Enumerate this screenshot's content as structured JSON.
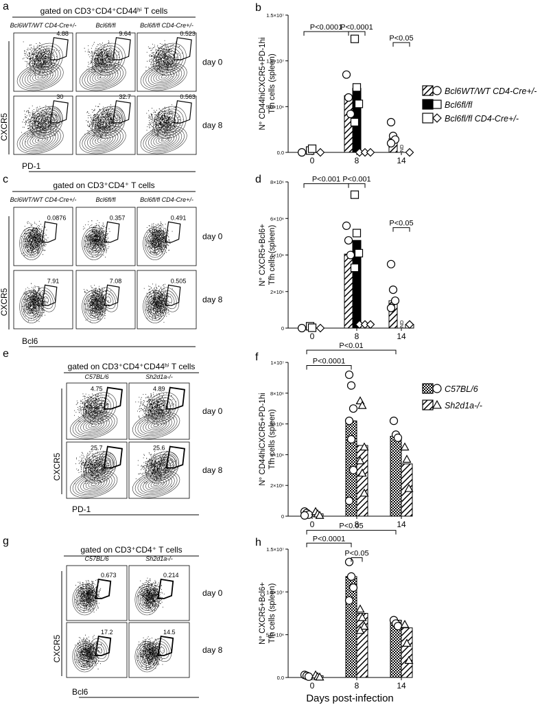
{
  "panel_letters": [
    "a",
    "b",
    "c",
    "d",
    "e",
    "f",
    "g",
    "h"
  ],
  "flow": [
    {
      "id": "a",
      "gate": "gated on CD3⁺CD4⁺CD44ʰⁱ T cells",
      "cols": [
        "Bcl6WT/WT CD4-Cre+/-",
        "Bcl6fl/fl",
        "Bcl6fl/fl CD4-Cre+/-"
      ],
      "rows": [
        "day 0",
        "day 8"
      ],
      "values": [
        [
          "4.88",
          "9.64",
          "0.523"
        ],
        [
          "30",
          "32.7",
          "0.563"
        ]
      ],
      "ylabel": "CXCR5",
      "xlabel": "PD-1"
    },
    {
      "id": "c",
      "gate": "gated on CD3⁺CD4⁺ T cells",
      "cols": [
        "Bcl6WT/WT CD4-Cre+/-",
        "Bcl6fl/fl",
        "Bcl6fl/fl CD4-Cre+/-"
      ],
      "rows": [
        "day 0",
        "day 8"
      ],
      "values": [
        [
          "0.0876",
          "0.357",
          "0.491"
        ],
        [
          "7.91",
          "7.08",
          "0.505"
        ]
      ],
      "ylabel": "CXCR5",
      "xlabel": "Bcl6"
    },
    {
      "id": "e",
      "gate": "gated on CD3⁺CD4⁺CD44ʰⁱ T cells",
      "cols": [
        "C57BL/6",
        "Sh2d1a-/-"
      ],
      "rows": [
        "day 0",
        "day 8"
      ],
      "values": [
        [
          "4.75",
          "4.89"
        ],
        [
          "25.7",
          "25.6"
        ]
      ],
      "ylabel": "CXCR5",
      "xlabel": "PD-1"
    },
    {
      "id": "g",
      "gate": "gated on CD3⁺CD4⁺ T cells",
      "cols": [
        "C57BL/6",
        "Sh2d1a-/-"
      ],
      "rows": [
        "day 0",
        "day 8"
      ],
      "values": [
        [
          "0.673",
          "0.214"
        ],
        [
          "17.2",
          "14.5"
        ]
      ],
      "ylabel": "CXCR5",
      "xlabel": "Bcl6"
    }
  ],
  "legend_top": [
    "Bcl6WT/WT CD4-Cre+/-",
    "Bcl6fl/fl",
    "Bcl6fl/fl CD4-Cre+/-"
  ],
  "legend_bottom": [
    "C57BL/6",
    "Sh2d1a-/-"
  ],
  "x_axis_title": "Days post-infection",
  "chart_data": [
    {
      "id": "b",
      "type": "bar",
      "ylabel": "N° CD44hiCXCR5+PD-1hi Tfh cells (spleen)",
      "categories": [
        "0",
        "8",
        "14"
      ],
      "yticks": [
        "0.0",
        "5.0×10⁶",
        "1.0×10⁷",
        "1.5×10⁷"
      ],
      "ylim": [
        0,
        15000000
      ],
      "series": [
        {
          "name": "Bcl6WT/WT CD4-Cre+/-",
          "values": [
            0,
            6200000,
            1500000
          ]
        },
        {
          "name": "Bcl6fl/fl",
          "values": [
            0,
            7000000,
            0
          ]
        },
        {
          "name": "Bcl6fl/fl CD4-Cre+/-",
          "values": [
            0,
            0,
            0
          ]
        }
      ],
      "points": [
        [
          [
            0
          ],
          [
            8500000,
            6000000,
            4200000
          ],
          [
            3300000,
            1800000,
            1400000,
            1000000
          ]
        ],
        [
          [
            200000,
            400000
          ],
          [
            12400000,
            7100000,
            5300000,
            3300000
          ],
          []
        ],
        [
          [
            0
          ],
          [
            0,
            0,
            0
          ],
          [
            0
          ]
        ]
      ],
      "nd": [
        "",
        "",
        "ND"
      ],
      "pvalues": [
        {
          "text": "P<0.0001",
          "x1": [
            0,
            0
          ],
          "x2": [
            1,
            0
          ],
          "y": 13200000
        },
        {
          "text": "P<0.0001",
          "x1": [
            1,
            0
          ],
          "x2": [
            1,
            2
          ],
          "y": 13200000
        },
        {
          "text": "P<0.05",
          "x1": [
            2,
            0
          ],
          "x2": [
            2,
            2
          ],
          "y": 12000000
        }
      ]
    },
    {
      "id": "d",
      "type": "bar",
      "ylabel": "N° CXCR5+Bcl6+ Tfh cells (spleen)",
      "categories": [
        "0",
        "8",
        "14"
      ],
      "yticks": [
        "0",
        "2×10⁶",
        "4×10⁶",
        "6×10⁶",
        "8×10⁶"
      ],
      "ylim": [
        0,
        8000000
      ],
      "series": [
        {
          "name": "Bcl6WT/WT CD4-Cre+/-",
          "values": [
            0,
            4050000,
            1500000
          ]
        },
        {
          "name": "Bcl6fl/fl",
          "values": [
            0,
            4800000,
            0
          ]
        },
        {
          "name": "Bcl6fl/fl CD4-Cre+/-",
          "values": [
            0,
            200000,
            200000
          ]
        }
      ],
      "points": [
        [
          [
            0
          ],
          [
            5600000,
            4800000,
            4000000
          ],
          [
            3500000,
            2100000,
            1500000,
            1100000
          ]
        ],
        [
          [
            100000,
            20000
          ],
          [
            7300000,
            5200000,
            4100000,
            3300000
          ],
          []
        ],
        [
          [
            0
          ],
          [
            200000,
            200000,
            200000
          ],
          [
            200000
          ]
        ]
      ],
      "nd": [
        "",
        "",
        "ND"
      ],
      "pvalues": [
        {
          "text": "P<0.001",
          "x1": [
            0,
            0
          ],
          "x2": [
            1,
            0
          ],
          "y": 7900000
        },
        {
          "text": "P<0.001",
          "x1": [
            1,
            0
          ],
          "x2": [
            1,
            2
          ],
          "y": 7900000
        },
        {
          "text": "P<0.05",
          "x1": [
            2,
            0
          ],
          "x2": [
            2,
            2
          ],
          "y": 5500000
        }
      ]
    },
    {
      "id": "f",
      "type": "bar",
      "ylabel": "N° CD44hiCXCR5+PD-1hi Tfh cells (spleen)",
      "categories": [
        "0",
        "8",
        "14"
      ],
      "yticks": [
        "0",
        "2×10⁶",
        "4×10⁶",
        "6×10⁶",
        "8×10⁶",
        "1×10⁷"
      ],
      "ylim": [
        0,
        10000000
      ],
      "series": [
        {
          "name": "C57BL/6",
          "values": [
            200000,
            6200000,
            5200000
          ]
        },
        {
          "name": "Sh2d1a-/-",
          "values": [
            150000,
            4600000,
            3400000
          ]
        }
      ],
      "points": [
        [
          [
            300000,
            200000,
            100000,
            50000
          ],
          [
            9200000,
            8500000,
            7000000,
            6200000,
            5000000,
            3000000,
            1000000
          ],
          [
            6200000,
            5300000,
            5100000
          ]
        ],
        [
          [
            300000,
            150000,
            50000
          ],
          [
            7500000,
            7200000,
            4500000,
            3600000,
            2800000,
            1500000
          ],
          [
            4500000,
            3700000,
            1800000
          ]
        ]
      ],
      "pvalues": [
        {
          "text": "P<0.0001",
          "x1": [
            0,
            0
          ],
          "x2": [
            1,
            0
          ],
          "y": 9800000
        },
        {
          "text": "P<0.01",
          "x1": [
            0,
            0
          ],
          "x2": [
            2,
            0
          ],
          "y": 10800000
        }
      ]
    },
    {
      "id": "h",
      "type": "bar",
      "ylabel": "N° CXCR5+Bcl6+ Tfh cells (spleen)",
      "categories": [
        "0",
        "8",
        "14"
      ],
      "yticks": [
        "0.0",
        "5.0×10⁶",
        "1.0×10⁷",
        "1.5×10⁷"
      ],
      "ylim": [
        0,
        15000000
      ],
      "series": [
        {
          "name": "C57BL/6",
          "values": [
            200000,
            11800000,
            6700000
          ]
        },
        {
          "name": "Sh2d1a-/-",
          "values": [
            200000,
            7500000,
            5800000
          ]
        }
      ],
      "points": [
        [
          [
            300000,
            200000,
            100000
          ],
          [
            13500000,
            11800000,
            10500000,
            9000000
          ],
          [
            6700000,
            6300000,
            6000000
          ]
        ],
        [
          [
            300000,
            100000,
            50000
          ],
          [
            8000000,
            7000000,
            6000000,
            5500000
          ],
          [
            6200000,
            4000000,
            2000000
          ]
        ]
      ],
      "pvalues": [
        {
          "text": "P<0.0001",
          "x1": [
            0,
            0
          ],
          "x2": [
            1,
            0
          ],
          "y": 15700000
        },
        {
          "text": "P<0.05",
          "x1": [
            1,
            0
          ],
          "x2": [
            1,
            1
          ],
          "y": 14000000
        },
        {
          "text": "P<0.05",
          "x1": [
            0,
            0
          ],
          "x2": [
            2,
            0
          ],
          "y": 17200000
        }
      ]
    }
  ]
}
